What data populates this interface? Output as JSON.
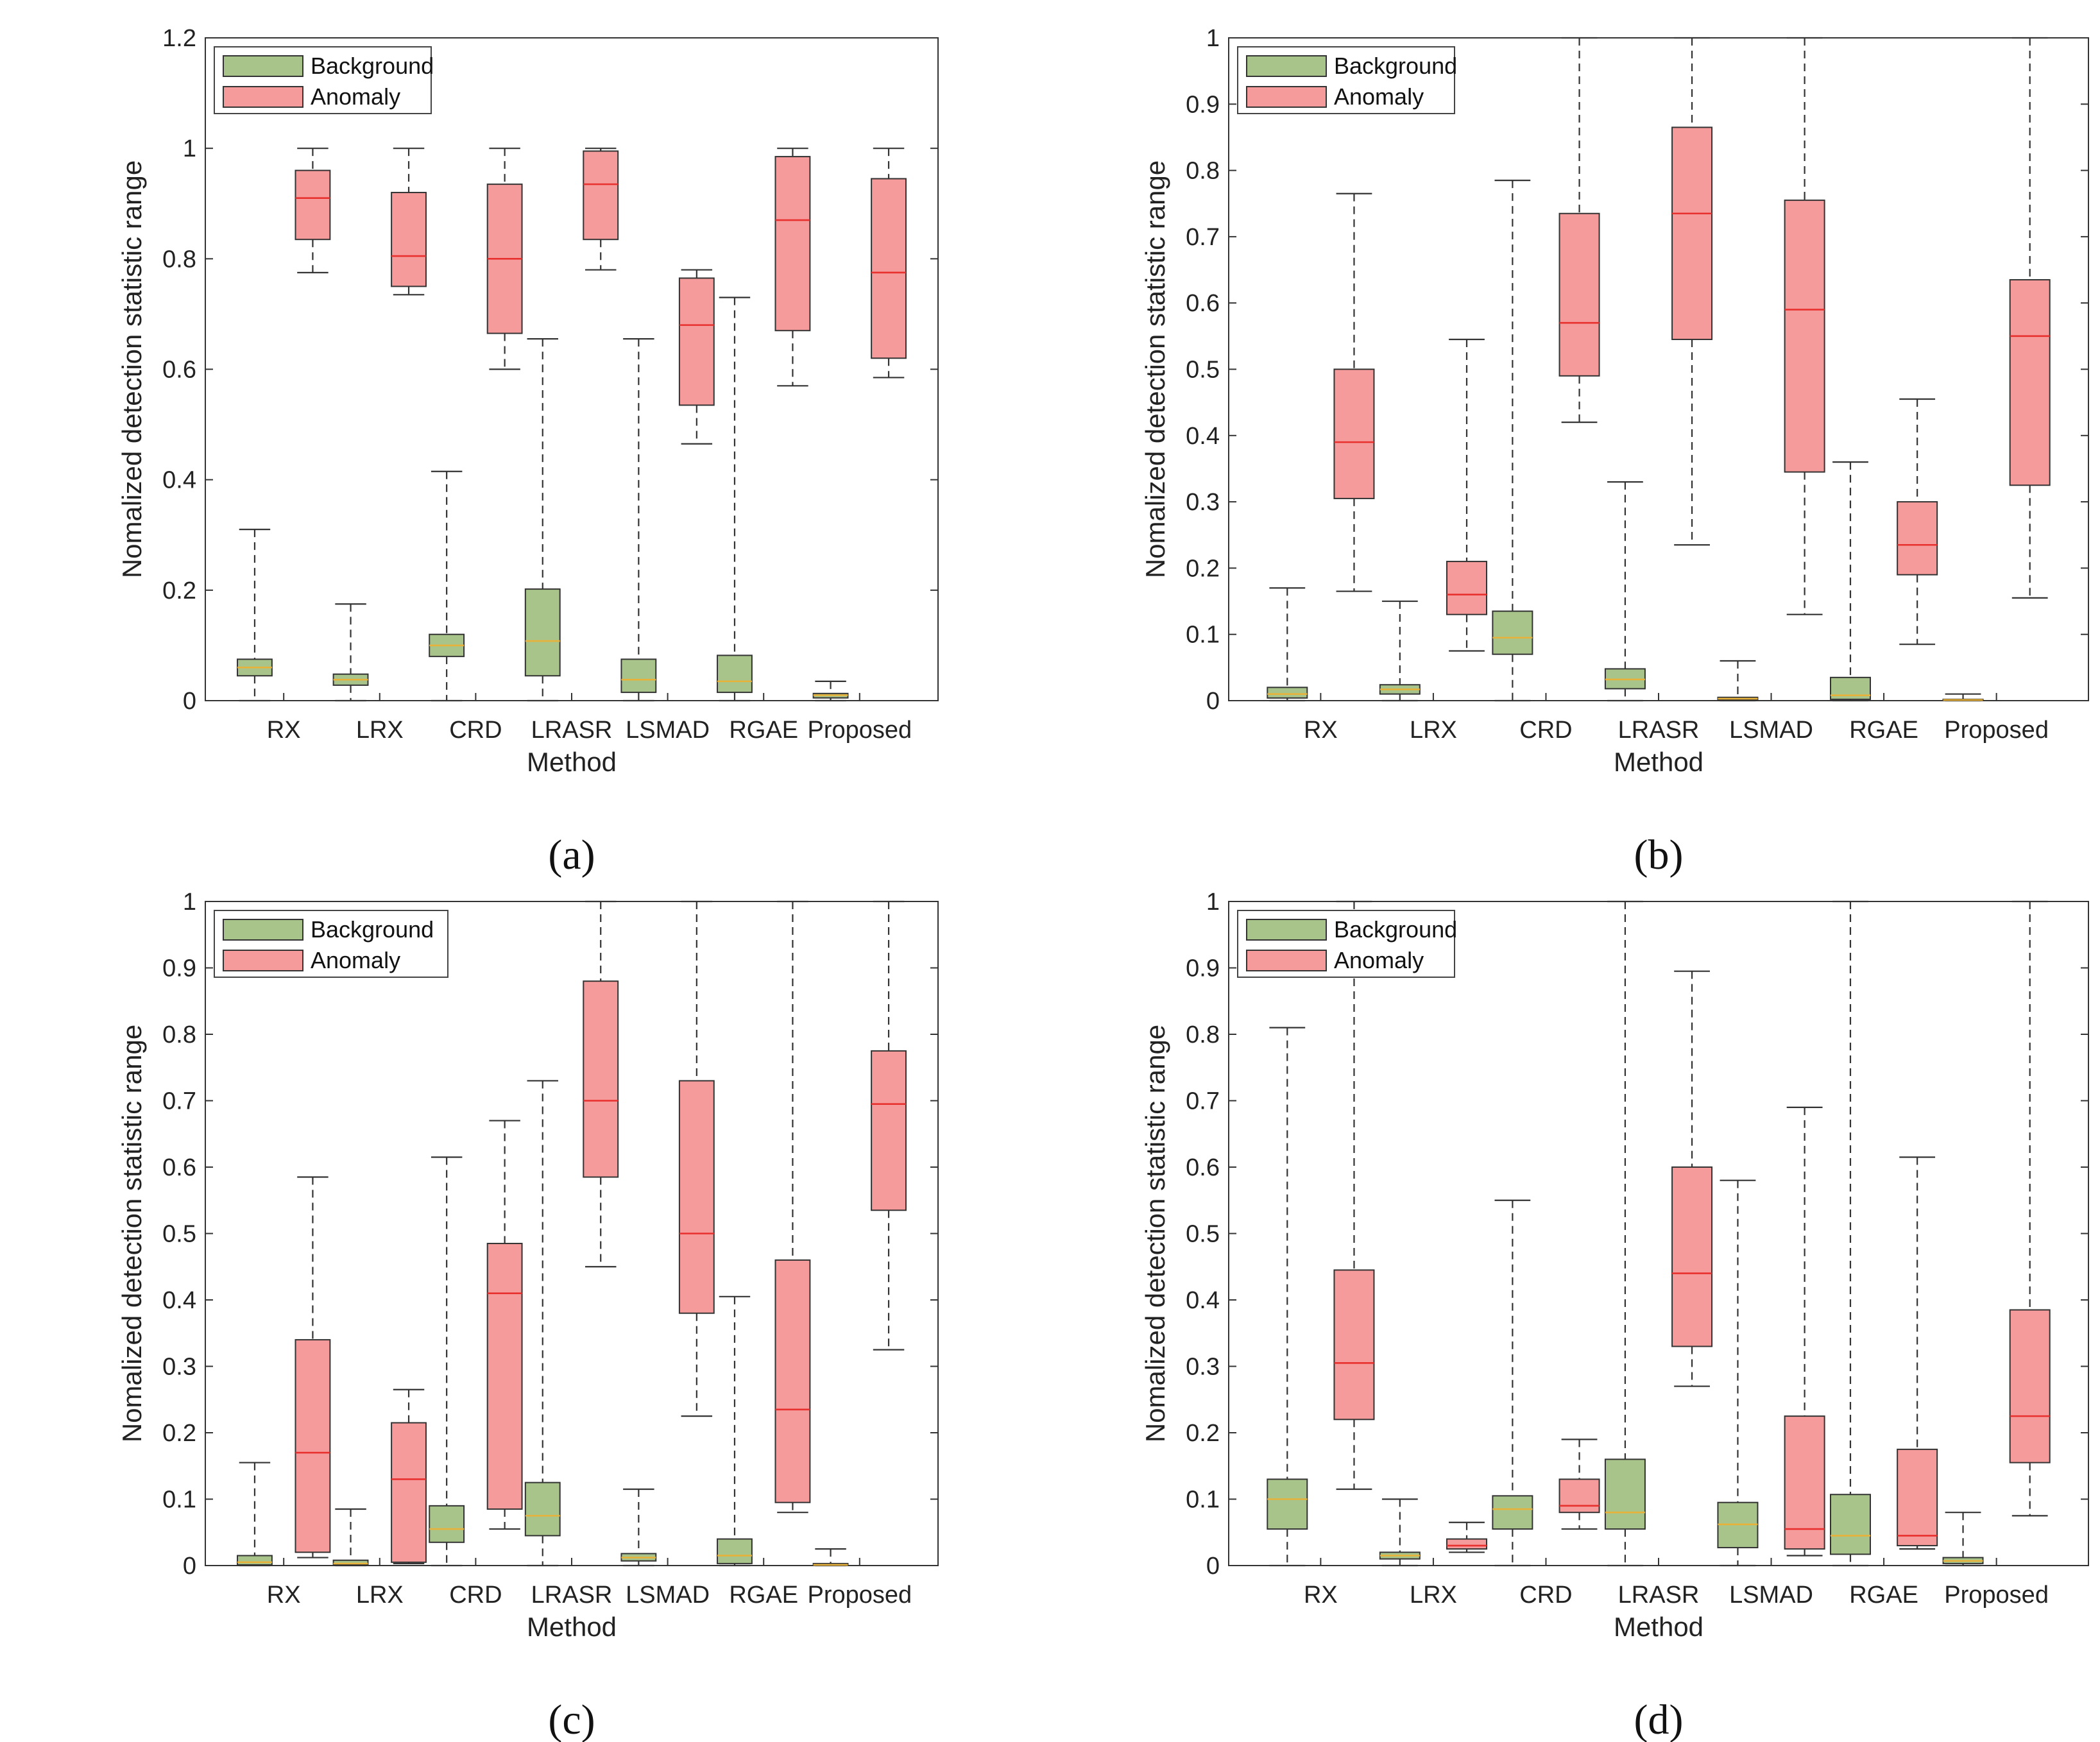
{
  "chart_data": [
    {
      "type": "boxplot",
      "panel_label": "(a)",
      "xlabel": "Method",
      "ylabel": "Nomalized detection statistic range",
      "ylim": [
        0,
        1.2
      ],
      "yticks": [
        0,
        0.2,
        0.4,
        0.6,
        0.8,
        1,
        1.2
      ],
      "categories": [
        "RX",
        "LRX",
        "CRD",
        "LRASR",
        "LSMAD",
        "RGAE",
        "Proposed"
      ],
      "legend": {
        "position": "top-left",
        "entries": [
          "Background",
          "Anomaly"
        ]
      },
      "series": [
        {
          "name": "Background",
          "color": "#a9c48a",
          "median_color": "#e8b23a",
          "boxes": [
            {
              "min": 0,
              "q1": 0.045,
              "median": 0.06,
              "q3": 0.075,
              "max": 0.31
            },
            {
              "min": 0,
              "q1": 0.028,
              "median": 0.038,
              "q3": 0.048,
              "max": 0.175
            },
            {
              "min": 0,
              "q1": 0.08,
              "median": 0.1,
              "q3": 0.12,
              "max": 0.415
            },
            {
              "min": 0,
              "q1": 0.045,
              "median": 0.108,
              "q3": 0.202,
              "max": 0.655
            },
            {
              "min": 0,
              "q1": 0.015,
              "median": 0.038,
              "q3": 0.075,
              "max": 0.655
            },
            {
              "min": 0,
              "q1": 0.015,
              "median": 0.035,
              "q3": 0.082,
              "max": 0.73
            },
            {
              "min": 0,
              "q1": 0.005,
              "median": 0.01,
              "q3": 0.013,
              "max": 0.035
            }
          ]
        },
        {
          "name": "Anomaly",
          "color": "#f59b9b",
          "median_color": "#e8302e",
          "boxes": [
            {
              "min": 0.775,
              "q1": 0.835,
              "median": 0.91,
              "q3": 0.96,
              "max": 1
            },
            {
              "min": 0.735,
              "q1": 0.75,
              "median": 0.805,
              "q3": 0.92,
              "max": 1
            },
            {
              "min": 0.6,
              "q1": 0.665,
              "median": 0.8,
              "q3": 0.935,
              "max": 1
            },
            {
              "min": 0.78,
              "q1": 0.835,
              "median": 0.935,
              "q3": 0.995,
              "max": 1
            },
            {
              "min": 0.465,
              "q1": 0.535,
              "median": 0.68,
              "q3": 0.765,
              "max": 0.78
            },
            {
              "min": 0.57,
              "q1": 0.67,
              "median": 0.87,
              "q3": 0.985,
              "max": 1
            },
            {
              "min": 0.585,
              "q1": 0.62,
              "median": 0.775,
              "q3": 0.945,
              "max": 1
            }
          ]
        }
      ]
    },
    {
      "type": "boxplot",
      "panel_label": "(b)",
      "xlabel": "Method",
      "ylabel": "Nomalized detection statistic range",
      "ylim": [
        0,
        1
      ],
      "yticks": [
        0,
        0.1,
        0.2,
        0.3,
        0.4,
        0.5,
        0.6,
        0.7,
        0.8,
        0.9,
        1
      ],
      "categories": [
        "RX",
        "LRX",
        "CRD",
        "LRASR",
        "LSMAD",
        "RGAE",
        "Proposed"
      ],
      "legend": {
        "position": "top-left",
        "entries": [
          "Background",
          "Anomaly"
        ]
      },
      "series": [
        {
          "name": "Background",
          "color": "#a9c48a",
          "median_color": "#e8b23a",
          "boxes": [
            {
              "min": 0,
              "q1": 0.004,
              "median": 0.01,
              "q3": 0.02,
              "max": 0.17
            },
            {
              "min": 0,
              "q1": 0.01,
              "median": 0.017,
              "q3": 0.024,
              "max": 0.15
            },
            {
              "min": 0,
              "q1": 0.07,
              "median": 0.095,
              "q3": 0.135,
              "max": 0.785
            },
            {
              "min": 0,
              "q1": 0.018,
              "median": 0.032,
              "q3": 0.048,
              "max": 0.33
            },
            {
              "min": 0,
              "q1": 0.001,
              "median": 0.003,
              "q3": 0.005,
              "max": 0.06
            },
            {
              "min": 0,
              "q1": 0.002,
              "median": 0.008,
              "q3": 0.035,
              "max": 0.36
            },
            {
              "min": 0,
              "q1": 0.0005,
              "median": 0.001,
              "q3": 0.002,
              "max": 0.01
            }
          ]
        },
        {
          "name": "Anomaly",
          "color": "#f59b9b",
          "median_color": "#e8302e",
          "boxes": [
            {
              "min": 0.165,
              "q1": 0.305,
              "median": 0.39,
              "q3": 0.5,
              "max": 0.765
            },
            {
              "min": 0.075,
              "q1": 0.13,
              "median": 0.16,
              "q3": 0.21,
              "max": 0.545
            },
            {
              "min": 0.42,
              "q1": 0.49,
              "median": 0.57,
              "q3": 0.735,
              "max": 1
            },
            {
              "min": 0.235,
              "q1": 0.545,
              "median": 0.735,
              "q3": 0.865,
              "max": 1
            },
            {
              "min": 0.13,
              "q1": 0.345,
              "median": 0.59,
              "q3": 0.755,
              "max": 1
            },
            {
              "min": 0.085,
              "q1": 0.19,
              "median": 0.235,
              "q3": 0.3,
              "max": 0.455
            },
            {
              "min": 0.155,
              "q1": 0.325,
              "median": 0.55,
              "q3": 0.635,
              "max": 1
            }
          ]
        }
      ]
    },
    {
      "type": "boxplot",
      "panel_label": "(c)",
      "xlabel": "Method",
      "ylabel": "Nomalized detection statistic range",
      "ylim": [
        0,
        1
      ],
      "yticks": [
        0,
        0.1,
        0.2,
        0.3,
        0.4,
        0.5,
        0.6,
        0.7,
        0.8,
        0.9,
        1
      ],
      "categories": [
        "RX",
        "LRX",
        "CRD",
        "LRASR",
        "LSMAD",
        "RGAE",
        "Proposed"
      ],
      "legend": {
        "position": "top-left",
        "entries": [
          "Background",
          "Anomaly"
        ]
      },
      "series": [
        {
          "name": "Background",
          "color": "#a9c48a",
          "median_color": "#e8b23a",
          "boxes": [
            {
              "min": 0,
              "q1": 0.001,
              "median": 0.005,
              "q3": 0.015,
              "max": 0.155
            },
            {
              "min": 0,
              "q1": 0.001,
              "median": 0.003,
              "q3": 0.008,
              "max": 0.085
            },
            {
              "min": 0,
              "q1": 0.035,
              "median": 0.055,
              "q3": 0.09,
              "max": 0.615
            },
            {
              "min": 0,
              "q1": 0.045,
              "median": 0.075,
              "q3": 0.125,
              "max": 0.73
            },
            {
              "min": 0,
              "q1": 0.007,
              "median": 0.012,
              "q3": 0.018,
              "max": 0.115
            },
            {
              "min": 0,
              "q1": 0.003,
              "median": 0.015,
              "q3": 0.04,
              "max": 0.405
            },
            {
              "min": 0,
              "q1": 0.0005,
              "median": 0.001,
              "q3": 0.003,
              "max": 0.025
            }
          ]
        },
        {
          "name": "Anomaly",
          "color": "#f59b9b",
          "median_color": "#e8302e",
          "boxes": [
            {
              "min": 0.012,
              "q1": 0.02,
              "median": 0.17,
              "q3": 0.34,
              "max": 0.585
            },
            {
              "min": 0.003,
              "q1": 0.005,
              "median": 0.13,
              "q3": 0.215,
              "max": 0.265
            },
            {
              "min": 0.055,
              "q1": 0.085,
              "median": 0.41,
              "q3": 0.485,
              "max": 0.67
            },
            {
              "min": 0.45,
              "q1": 0.585,
              "median": 0.7,
              "q3": 0.88,
              "max": 1
            },
            {
              "min": 0.225,
              "q1": 0.38,
              "median": 0.5,
              "q3": 0.73,
              "max": 1
            },
            {
              "min": 0.08,
              "q1": 0.095,
              "median": 0.235,
              "q3": 0.46,
              "max": 1
            },
            {
              "min": 0.325,
              "q1": 0.535,
              "median": 0.695,
              "q3": 0.775,
              "max": 1
            }
          ]
        }
      ]
    },
    {
      "type": "boxplot",
      "panel_label": "(d)",
      "xlabel": "Method",
      "ylabel": "Nomalized detection statistic range",
      "ylim": [
        0,
        1
      ],
      "yticks": [
        0,
        0.1,
        0.2,
        0.3,
        0.4,
        0.5,
        0.6,
        0.7,
        0.8,
        0.9,
        1
      ],
      "categories": [
        "RX",
        "LRX",
        "CRD",
        "LRASR",
        "LSMAD",
        "RGAE",
        "Proposed"
      ],
      "legend": {
        "position": "top-left",
        "entries": [
          "Background",
          "Anomaly"
        ]
      },
      "series": [
        {
          "name": "Background",
          "color": "#a9c48a",
          "median_color": "#e8b23a",
          "boxes": [
            {
              "min": 0,
              "q1": 0.055,
              "median": 0.1,
              "q3": 0.13,
              "max": 0.81
            },
            {
              "min": 0,
              "q1": 0.01,
              "median": 0.015,
              "q3": 0.02,
              "max": 0.1
            },
            {
              "min": 0,
              "q1": 0.055,
              "median": 0.085,
              "q3": 0.105,
              "max": 0.55
            },
            {
              "min": 0,
              "q1": 0.055,
              "median": 0.08,
              "q3": 0.16,
              "max": 1
            },
            {
              "min": 0,
              "q1": 0.027,
              "median": 0.062,
              "q3": 0.095,
              "max": 0.58
            },
            {
              "min": 0,
              "q1": 0.017,
              "median": 0.045,
              "q3": 0.107,
              "max": 1
            },
            {
              "min": 0,
              "q1": 0.003,
              "median": 0.007,
              "q3": 0.012,
              "max": 0.08
            }
          ]
        },
        {
          "name": "Anomaly",
          "color": "#f59b9b",
          "median_color": "#e8302e",
          "boxes": [
            {
              "min": 0.115,
              "q1": 0.22,
              "median": 0.305,
              "q3": 0.445,
              "max": 1
            },
            {
              "min": 0.02,
              "q1": 0.025,
              "median": 0.03,
              "q3": 0.04,
              "max": 0.065
            },
            {
              "min": 0.055,
              "q1": 0.08,
              "median": 0.09,
              "q3": 0.13,
              "max": 0.19
            },
            {
              "min": 0.27,
              "q1": 0.33,
              "median": 0.44,
              "q3": 0.6,
              "max": 0.895
            },
            {
              "min": 0.015,
              "q1": 0.025,
              "median": 0.055,
              "q3": 0.225,
              "max": 0.69
            },
            {
              "min": 0.025,
              "q1": 0.03,
              "median": 0.045,
              "q3": 0.175,
              "max": 0.615
            },
            {
              "min": 0.075,
              "q1": 0.155,
              "median": 0.225,
              "q3": 0.385,
              "max": 1
            }
          ]
        }
      ]
    }
  ]
}
